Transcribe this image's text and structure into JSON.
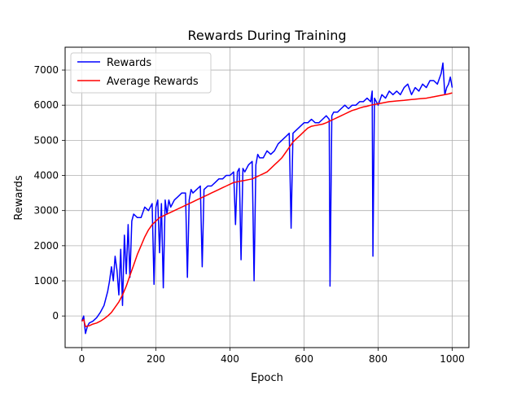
{
  "chart_data": {
    "type": "line",
    "title": "Rewards During Training",
    "xlabel": "Epoch",
    "ylabel": "Rewards",
    "xlim": [
      -45,
      1045
    ],
    "ylim": [
      -900,
      7650
    ],
    "xticks": [
      0,
      200,
      400,
      600,
      800,
      1000
    ],
    "yticks": [
      0,
      1000,
      2000,
      3000,
      4000,
      5000,
      6000,
      7000
    ],
    "grid": true,
    "legend_position": "upper left",
    "colors": {
      "rewards": "#0000ff",
      "average": "#ff0000",
      "grid": "#b0b0b0"
    },
    "series": [
      {
        "name": "Rewards",
        "color": "#0000ff",
        "x": [
          0,
          5,
          10,
          15,
          20,
          30,
          40,
          50,
          60,
          70,
          75,
          80,
          85,
          90,
          95,
          100,
          105,
          110,
          115,
          120,
          125,
          130,
          135,
          140,
          150,
          160,
          170,
          180,
          190,
          195,
          200,
          205,
          210,
          215,
          220,
          225,
          230,
          235,
          240,
          250,
          260,
          270,
          280,
          285,
          290,
          295,
          300,
          310,
          320,
          325,
          330,
          340,
          350,
          360,
          370,
          380,
          390,
          400,
          410,
          415,
          420,
          425,
          430,
          435,
          440,
          450,
          460,
          465,
          470,
          475,
          480,
          490,
          500,
          510,
          520,
          530,
          540,
          550,
          560,
          565,
          570,
          580,
          590,
          600,
          610,
          620,
          630,
          640,
          650,
          660,
          668,
          670,
          675,
          680,
          690,
          700,
          710,
          720,
          730,
          740,
          750,
          760,
          770,
          780,
          784,
          786,
          790,
          800,
          810,
          820,
          830,
          840,
          850,
          860,
          870,
          880,
          890,
          900,
          910,
          920,
          930,
          940,
          950,
          960,
          970,
          975,
          980,
          985,
          990,
          995,
          1000
        ],
        "y": [
          -150,
          0,
          -500,
          -300,
          -200,
          -150,
          -50,
          100,
          300,
          700,
          1000,
          1400,
          1000,
          1700,
          1300,
          600,
          1900,
          300,
          2300,
          1200,
          2600,
          1100,
          2700,
          2900,
          2800,
          2800,
          3100,
          3000,
          3200,
          900,
          3100,
          3300,
          1800,
          3200,
          800,
          3300,
          2900,
          3300,
          3100,
          3300,
          3400,
          3500,
          3500,
          1100,
          3300,
          3600,
          3500,
          3600,
          3700,
          1400,
          3600,
          3700,
          3700,
          3800,
          3900,
          3900,
          4000,
          4000,
          4100,
          2600,
          4100,
          4200,
          1600,
          4200,
          4100,
          4300,
          4400,
          1000,
          4300,
          4600,
          4500,
          4500,
          4700,
          4600,
          4700,
          4900,
          5000,
          5100,
          5200,
          2500,
          5200,
          5300,
          5400,
          5500,
          5500,
          5600,
          5500,
          5500,
          5600,
          5700,
          5600,
          850,
          5700,
          5800,
          5800,
          5900,
          6000,
          5900,
          6000,
          6000,
          6100,
          6100,
          6200,
          6100,
          6400,
          1700,
          6200,
          6000,
          6300,
          6200,
          6400,
          6300,
          6400,
          6300,
          6500,
          6600,
          6300,
          6500,
          6400,
          6600,
          6500,
          6700,
          6700,
          6600,
          6900,
          7200,
          6300,
          6500,
          6600,
          6800,
          6500
        ]
      },
      {
        "name": "Average Rewards",
        "color": "#ff0000",
        "x": [
          0,
          5,
          10,
          20,
          30,
          40,
          50,
          60,
          70,
          80,
          90,
          100,
          110,
          120,
          130,
          140,
          150,
          160,
          170,
          180,
          190,
          200,
          210,
          220,
          230,
          240,
          250,
          260,
          270,
          280,
          290,
          300,
          310,
          320,
          330,
          340,
          350,
          360,
          370,
          380,
          390,
          400,
          410,
          420,
          430,
          440,
          450,
          460,
          470,
          480,
          490,
          500,
          510,
          520,
          530,
          540,
          550,
          560,
          570,
          580,
          590,
          600,
          610,
          620,
          630,
          640,
          650,
          660,
          670,
          680,
          690,
          700,
          710,
          720,
          730,
          740,
          750,
          760,
          770,
          780,
          790,
          800,
          810,
          820,
          830,
          840,
          850,
          860,
          870,
          880,
          890,
          900,
          910,
          920,
          930,
          940,
          950,
          960,
          970,
          980,
          990,
          1000
        ],
        "y": [
          -150,
          -100,
          -300,
          -280,
          -230,
          -200,
          -150,
          -80,
          0,
          100,
          250,
          400,
          600,
          850,
          1150,
          1450,
          1750,
          2000,
          2250,
          2450,
          2600,
          2700,
          2800,
          2850,
          2900,
          2950,
          3000,
          3050,
          3100,
          3150,
          3200,
          3250,
          3300,
          3350,
          3400,
          3450,
          3500,
          3550,
          3600,
          3650,
          3700,
          3750,
          3800,
          3820,
          3840,
          3860,
          3880,
          3900,
          3950,
          4000,
          4050,
          4100,
          4200,
          4300,
          4400,
          4500,
          4650,
          4800,
          4950,
          5050,
          5150,
          5250,
          5350,
          5400,
          5420,
          5440,
          5460,
          5500,
          5550,
          5600,
          5650,
          5700,
          5750,
          5800,
          5850,
          5880,
          5920,
          5950,
          5970,
          6000,
          6020,
          6040,
          6060,
          6080,
          6100,
          6110,
          6120,
          6130,
          6140,
          6150,
          6160,
          6170,
          6180,
          6190,
          6200,
          6220,
          6240,
          6260,
          6280,
          6300,
          6320,
          6350
        ]
      }
    ]
  }
}
